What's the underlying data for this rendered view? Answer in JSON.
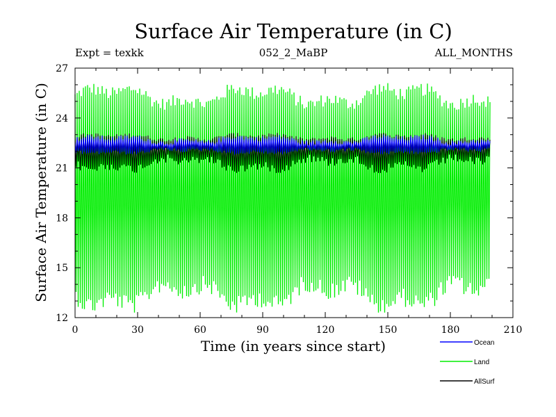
{
  "chart_data": {
    "type": "line",
    "title": "Surface Air Temperature (in C)",
    "subtitle_left": "Expt = texkk",
    "subtitle_center": "052_2_MaBP",
    "subtitle_right": "ALL_MONTHS",
    "xlabel": "Time (in years since start)",
    "ylabel": "Surface Air Temperature (in C)",
    "xlim": [
      0,
      210
    ],
    "ylim": [
      12,
      27
    ],
    "x_ticks": [
      0,
      30,
      60,
      90,
      120,
      150,
      180,
      210
    ],
    "y_ticks": [
      12,
      15,
      18,
      21,
      24,
      27
    ],
    "x_tick_labels": [
      "0",
      "30",
      "60",
      "90",
      "120",
      "150",
      "180",
      "210"
    ],
    "y_tick_labels": [
      "12",
      "15",
      "18",
      "21",
      "24",
      "27"
    ],
    "x_range_data": [
      0,
      199
    ],
    "series": [
      {
        "name": "Land",
        "color": "#00ee00",
        "seasonal_max_range": [
          24.5,
          26.1
        ],
        "seasonal_min_range": [
          12.3,
          14.5
        ],
        "mean": 19.2
      },
      {
        "name": "AllSurf",
        "color": "#000000",
        "seasonal_max_range": [
          22.6,
          23.1
        ],
        "seasonal_min_range": [
          20.7,
          21.8
        ],
        "mean": 22.2
      },
      {
        "name": "Ocean",
        "color": "#0000ff",
        "seasonal_max_range": [
          22.4,
          23.0
        ],
        "seasonal_min_range": [
          21.8,
          22.2
        ],
        "mean": 22.3
      }
    ],
    "legend": [
      {
        "name": "Ocean",
        "color": "#0000ff"
      },
      {
        "name": "Land",
        "color": "#00ee00"
      },
      {
        "name": "AllSurf",
        "color": "#000000"
      }
    ],
    "legend_position": "bottom-right"
  }
}
